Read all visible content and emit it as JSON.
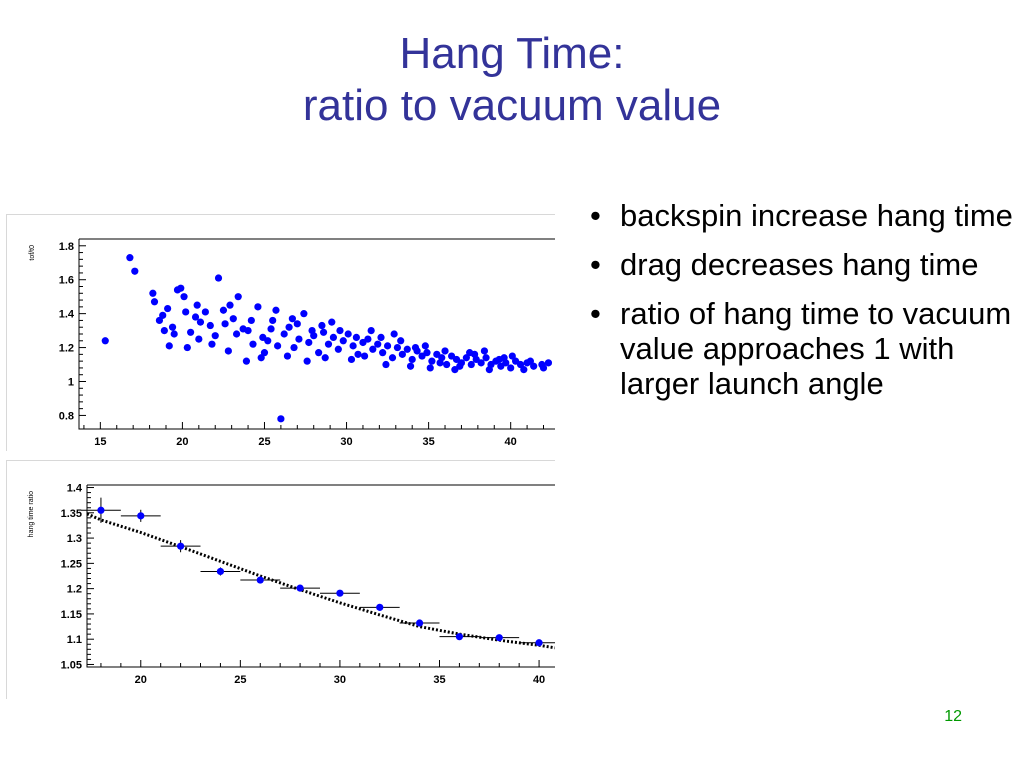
{
  "slide": {
    "title_line1": "Hang Time:",
    "title_line2": "ratio to vacuum value",
    "bullets": [
      "backspin increase hang time",
      "drag decreases hang time",
      "ratio of hang time to vacuum value approaches 1 with larger launch angle"
    ],
    "bullet_glyph": "•",
    "slide_number": "12"
  },
  "chart_data": [
    {
      "type": "scatter",
      "ylabel": "tof/t0",
      "xlabel": "",
      "xlim": [
        13.7,
        42.7
      ],
      "ylim": [
        0.72,
        1.84
      ],
      "xticks": [
        15,
        20,
        25,
        30,
        35,
        40
      ],
      "yticks": [
        0.8,
        1,
        1.2,
        1.4,
        1.6,
        1.8
      ],
      "ytick_labels": [
        "0.8",
        "1",
        "1.2",
        "1.4",
        "1.6",
        "1.8"
      ],
      "marker_color": "#0000ff",
      "grid": false,
      "points": [
        [
          15.3,
          1.24
        ],
        [
          16.8,
          1.73
        ],
        [
          17.1,
          1.65
        ],
        [
          18.2,
          1.52
        ],
        [
          18.3,
          1.47
        ],
        [
          18.6,
          1.36
        ],
        [
          18.8,
          1.39
        ],
        [
          19.1,
          1.43
        ],
        [
          19.4,
          1.32
        ],
        [
          19.7,
          1.54
        ],
        [
          19.9,
          1.55
        ],
        [
          20.2,
          1.41
        ],
        [
          20.5,
          1.29
        ],
        [
          20.8,
          1.38
        ],
        [
          21.1,
          1.35
        ],
        [
          21.4,
          1.41
        ],
        [
          21.7,
          1.33
        ],
        [
          22.0,
          1.27
        ],
        [
          22.2,
          1.61
        ],
        [
          22.5,
          1.42
        ],
        [
          22.8,
          1.18
        ],
        [
          23.1,
          1.37
        ],
        [
          23.4,
          1.5
        ],
        [
          23.7,
          1.31
        ],
        [
          24.0,
          1.3
        ],
        [
          24.3,
          1.22
        ],
        [
          24.6,
          1.44
        ],
        [
          24.9,
          1.26
        ],
        [
          25.2,
          1.24
        ],
        [
          25.5,
          1.36
        ],
        [
          25.8,
          1.21
        ],
        [
          26.0,
          0.78
        ],
        [
          26.2,
          1.28
        ],
        [
          26.5,
          1.32
        ],
        [
          26.8,
          1.2
        ],
        [
          27.1,
          1.25
        ],
        [
          27.4,
          1.4
        ],
        [
          27.7,
          1.23
        ],
        [
          28.0,
          1.27
        ],
        [
          28.3,
          1.17
        ],
        [
          28.6,
          1.29
        ],
        [
          28.9,
          1.22
        ],
        [
          29.2,
          1.26
        ],
        [
          29.5,
          1.19
        ],
        [
          29.8,
          1.24
        ],
        [
          30.1,
          1.28
        ],
        [
          30.4,
          1.21
        ],
        [
          30.7,
          1.16
        ],
        [
          31.0,
          1.23
        ],
        [
          31.3,
          1.25
        ],
        [
          31.6,
          1.19
        ],
        [
          31.9,
          1.22
        ],
        [
          32.2,
          1.17
        ],
        [
          32.5,
          1.21
        ],
        [
          32.8,
          1.14
        ],
        [
          33.1,
          1.2
        ],
        [
          33.4,
          1.16
        ],
        [
          33.7,
          1.19
        ],
        [
          34.0,
          1.13
        ],
        [
          34.3,
          1.18
        ],
        [
          34.6,
          1.15
        ],
        [
          34.9,
          1.17
        ],
        [
          35.2,
          1.12
        ],
        [
          35.5,
          1.16
        ],
        [
          35.8,
          1.14
        ],
        [
          36.1,
          1.1
        ],
        [
          36.4,
          1.15
        ],
        [
          36.7,
          1.13
        ],
        [
          37.0,
          1.11
        ],
        [
          37.3,
          1.14
        ],
        [
          37.6,
          1.1
        ],
        [
          37.9,
          1.13
        ],
        [
          38.2,
          1.11
        ],
        [
          38.5,
          1.14
        ],
        [
          38.8,
          1.1
        ],
        [
          39.1,
          1.12
        ],
        [
          39.4,
          1.09
        ],
        [
          39.7,
          1.11
        ],
        [
          40.0,
          1.08
        ],
        [
          40.3,
          1.12
        ],
        [
          40.6,
          1.1
        ],
        [
          41.0,
          1.11
        ],
        [
          41.4,
          1.09
        ],
        [
          41.9,
          1.1
        ],
        [
          42.3,
          1.11
        ],
        [
          18.9,
          1.3
        ],
        [
          19.5,
          1.28
        ],
        [
          20.1,
          1.5
        ],
        [
          20.9,
          1.45
        ],
        [
          21.8,
          1.22
        ],
        [
          22.6,
          1.34
        ],
        [
          23.3,
          1.28
        ],
        [
          24.2,
          1.36
        ],
        [
          25.0,
          1.17
        ],
        [
          25.7,
          1.42
        ],
        [
          26.4,
          1.15
        ],
        [
          27.0,
          1.34
        ],
        [
          27.9,
          1.3
        ],
        [
          28.7,
          1.14
        ],
        [
          29.6,
          1.3
        ],
        [
          30.6,
          1.26
        ],
        [
          31.5,
          1.3
        ],
        [
          32.4,
          1.1
        ],
        [
          33.3,
          1.24
        ],
        [
          34.2,
          1.2
        ],
        [
          35.1,
          1.08
        ],
        [
          36.0,
          1.18
        ],
        [
          36.9,
          1.09
        ],
        [
          37.8,
          1.16
        ],
        [
          38.7,
          1.07
        ],
        [
          39.6,
          1.14
        ],
        [
          40.8,
          1.07
        ],
        [
          21.0,
          1.25
        ],
        [
          22.9,
          1.45
        ],
        [
          24.8,
          1.14
        ],
        [
          26.7,
          1.37
        ],
        [
          28.5,
          1.33
        ],
        [
          30.3,
          1.13
        ],
        [
          32.1,
          1.26
        ],
        [
          33.9,
          1.09
        ],
        [
          35.7,
          1.11
        ],
        [
          37.5,
          1.17
        ],
        [
          39.3,
          1.13
        ],
        [
          41.2,
          1.12
        ],
        [
          20.3,
          1.2
        ],
        [
          23.9,
          1.12
        ],
        [
          27.6,
          1.12
        ],
        [
          31.1,
          1.15
        ],
        [
          34.8,
          1.21
        ],
        [
          38.4,
          1.18
        ],
        [
          42.0,
          1.08
        ],
        [
          19.2,
          1.21
        ],
        [
          25.4,
          1.31
        ],
        [
          29.1,
          1.35
        ],
        [
          32.9,
          1.28
        ],
        [
          36.6,
          1.07
        ],
        [
          40.1,
          1.15
        ]
      ]
    },
    {
      "type": "scatter",
      "ylabel": "hang time ratio",
      "xlabel": "",
      "xlim": [
        17.3,
        40.8
      ],
      "ylim": [
        1.045,
        1.405
      ],
      "xticks": [
        20,
        25,
        30,
        35,
        40
      ],
      "yticks": [
        1.05,
        1.1,
        1.15,
        1.2,
        1.25,
        1.3,
        1.35,
        1.4
      ],
      "ytick_labels": [
        "1.05",
        "1.1",
        "1.15",
        "1.2",
        "1.25",
        "1.3",
        "1.35",
        "1.4"
      ],
      "marker_color": "#0000ff",
      "fit_line": "dotted",
      "grid": false,
      "points": [
        {
          "x": 18,
          "y": 1.355,
          "xerr": 1,
          "yerr": 0.025
        },
        {
          "x": 20,
          "y": 1.344,
          "xerr": 1,
          "yerr": 0.012
        },
        {
          "x": 22,
          "y": 1.284,
          "xerr": 1,
          "yerr": 0.012
        },
        {
          "x": 24,
          "y": 1.234,
          "xerr": 1,
          "yerr": 0.008
        },
        {
          "x": 26,
          "y": 1.217,
          "xerr": 1,
          "yerr": 0.006
        },
        {
          "x": 28,
          "y": 1.201,
          "xerr": 1,
          "yerr": 0.005
        },
        {
          "x": 30,
          "y": 1.191,
          "xerr": 1,
          "yerr": 0.005
        },
        {
          "x": 32,
          "y": 1.163,
          "xerr": 1,
          "yerr": 0.004
        },
        {
          "x": 34,
          "y": 1.132,
          "xerr": 1,
          "yerr": 0.004
        },
        {
          "x": 36,
          "y": 1.105,
          "xerr": 1,
          "yerr": 0.003
        },
        {
          "x": 38,
          "y": 1.103,
          "xerr": 1,
          "yerr": 0.003
        },
        {
          "x": 40,
          "y": 1.093,
          "xerr": 1,
          "yerr": 0.003
        }
      ],
      "fit": [
        [
          17.3,
          1.348
        ],
        [
          18,
          1.336
        ],
        [
          20,
          1.311
        ],
        [
          22,
          1.283
        ],
        [
          24,
          1.254
        ],
        [
          26,
          1.225
        ],
        [
          28,
          1.198
        ],
        [
          30,
          1.172
        ],
        [
          32,
          1.148
        ],
        [
          34,
          1.125
        ],
        [
          36,
          1.11
        ],
        [
          38,
          1.098
        ],
        [
          40,
          1.088
        ],
        [
          40.8,
          1.083
        ]
      ]
    }
  ]
}
